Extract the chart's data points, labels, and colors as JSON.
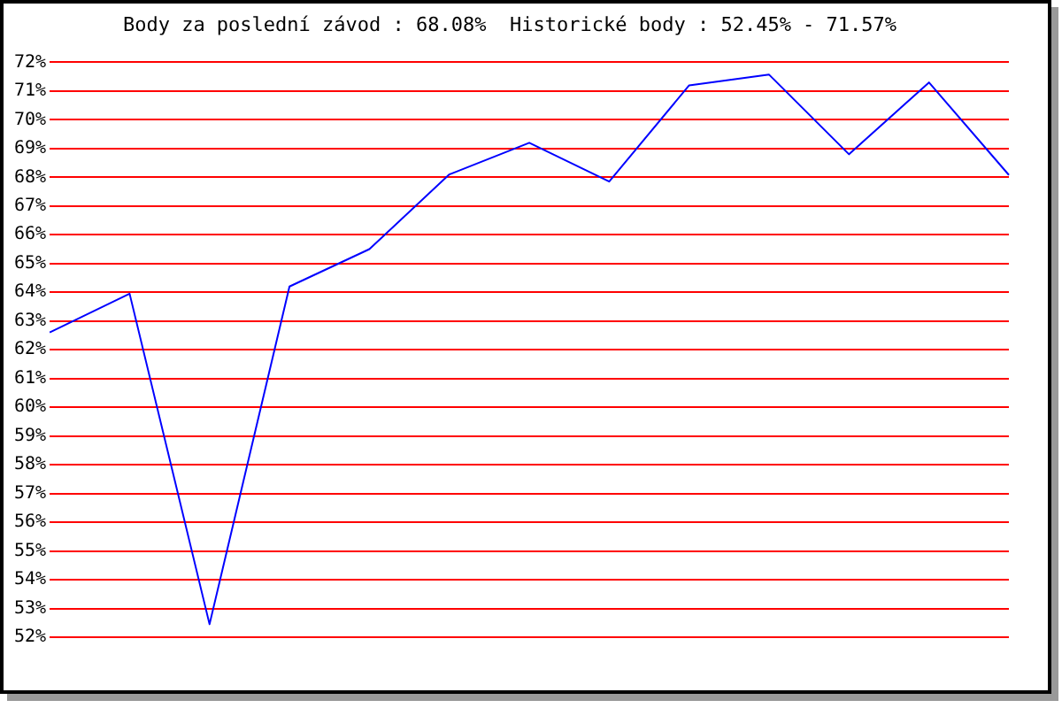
{
  "chart_data": {
    "type": "line",
    "title": "Body za poslední závod : 68.08%  Historické body : 52.45% - 71.57%",
    "categories": [
      null,
      null,
      null,
      null,
      null,
      null,
      null,
      null,
      null,
      null,
      null,
      null,
      null
    ],
    "series": [
      {
        "color": "#0000ff",
        "values": [
          62.6,
          63.95,
          52.45,
          64.2,
          65.5,
          68.1,
          69.2,
          67.85,
          71.2,
          71.57,
          68.8,
          71.3,
          68.08
        ]
      }
    ],
    "ylim": [
      52,
      72
    ],
    "yticks": [
      {
        "value": 52,
        "label": "52%"
      },
      {
        "value": 53,
        "label": "53%"
      },
      {
        "value": 54,
        "label": "54%"
      },
      {
        "value": 55,
        "label": "55%"
      },
      {
        "value": 56,
        "label": "56%"
      },
      {
        "value": 57,
        "label": "57%"
      },
      {
        "value": 58,
        "label": "58%"
      },
      {
        "value": 59,
        "label": "59%"
      },
      {
        "value": 60,
        "label": "60%"
      },
      {
        "value": 61,
        "label": "61%"
      },
      {
        "value": 62,
        "label": "62%"
      },
      {
        "value": 63,
        "label": "63%"
      },
      {
        "value": 64,
        "label": "64%"
      },
      {
        "value": 65,
        "label": "65%"
      },
      {
        "value": 66,
        "label": "66%"
      },
      {
        "value": 67,
        "label": "67%"
      },
      {
        "value": 68,
        "label": "68%"
      },
      {
        "value": 69,
        "label": "69%"
      },
      {
        "value": 70,
        "label": "70%"
      },
      {
        "value": 71,
        "label": "71%"
      },
      {
        "value": 72,
        "label": "72%"
      }
    ],
    "grid": "y",
    "legend": false,
    "marker": "none",
    "tick_labels": "y"
  }
}
